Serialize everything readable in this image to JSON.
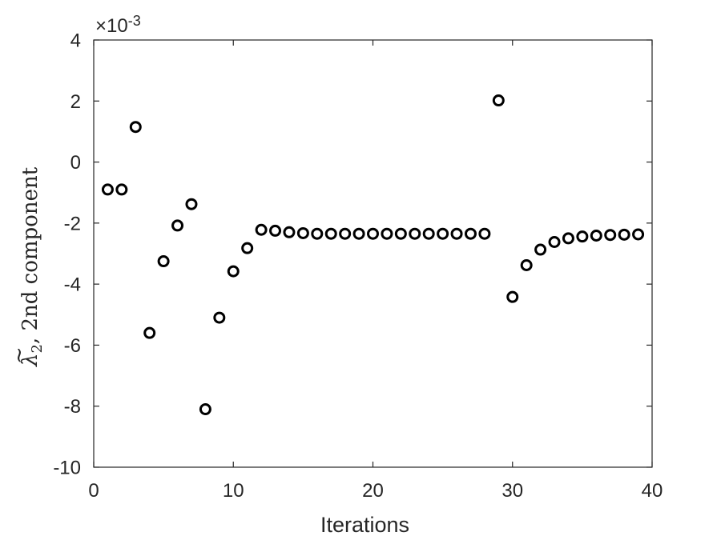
{
  "chart_data": {
    "type": "scatter",
    "xlabel": "Iterations",
    "ylabel_symbol": "λ",
    "ylabel_subscript": "2",
    "ylabel_rest": ", 2nd component",
    "y_exponent_prefix": "×10",
    "y_exponent": "-3",
    "xlim": [
      0,
      40
    ],
    "ylim": [
      -10,
      4
    ],
    "y_scale_factor": 0.001,
    "xticks": [
      0,
      10,
      20,
      30,
      40
    ],
    "yticks": [
      -10,
      -8,
      -6,
      -4,
      -2,
      0,
      2,
      4
    ],
    "xtick_labels": [
      "0",
      "10",
      "20",
      "30",
      "40"
    ],
    "ytick_labels": [
      "-10",
      "-8",
      "-6",
      "-4",
      "-2",
      "0",
      "2",
      "4"
    ],
    "grid": false,
    "marker": "open-circle",
    "marker_color": "#000000",
    "series": [
      {
        "x": [
          1,
          2,
          3,
          4,
          5,
          6,
          7,
          8,
          9,
          10,
          11,
          12,
          13,
          14,
          15,
          16,
          17,
          18,
          19,
          20,
          21,
          22,
          23,
          24,
          25,
          26,
          27,
          28,
          29,
          30,
          31,
          32,
          33,
          34,
          35,
          36,
          37,
          38,
          39
        ],
        "y": [
          -0.9,
          -0.9,
          1.15,
          -5.6,
          -3.25,
          -2.08,
          -1.38,
          -8.1,
          -5.1,
          -3.58,
          -2.82,
          -2.22,
          -2.25,
          -2.3,
          -2.33,
          -2.35,
          -2.35,
          -2.35,
          -2.35,
          -2.35,
          -2.35,
          -2.35,
          -2.35,
          -2.35,
          -2.35,
          -2.35,
          -2.35,
          -2.35,
          2.02,
          -4.42,
          -3.38,
          -2.87,
          -2.62,
          -2.5,
          -2.44,
          -2.41,
          -2.39,
          -2.38,
          -2.37
        ]
      }
    ]
  }
}
